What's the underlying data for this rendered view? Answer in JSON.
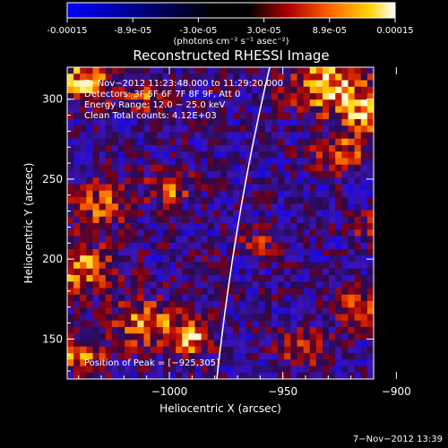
{
  "colors": {
    "background": "#000000",
    "text": "#ffffff",
    "limb": "#ffffff",
    "colorbar_stops": [
      "#0000ff",
      "#000000",
      "#b40000",
      "#ff6400",
      "#ffd200",
      "#ffffff"
    ]
  },
  "colorbar": {
    "ticks": [
      "-0.00015",
      "-8.9e-05",
      "-3.0e-05",
      "3.0e-05",
      "8.9e-05",
      "0.00015"
    ],
    "unit_label": "(photons cm⁻² s⁻¹ asec⁻²)"
  },
  "chart_data": {
    "type": "heatmap",
    "title": "Reconstructed RHESSI Image",
    "xlabel": "Heliocentric X (arcsec)",
    "ylabel": "Heliocentric Y (arcsec)",
    "xlim": [
      -1045,
      -910
    ],
    "ylim": [
      125,
      320
    ],
    "x_ticks": [
      -1000,
      -950,
      -900
    ],
    "y_ticks": [
      150,
      200,
      250,
      300
    ],
    "x_tick_labels": [
      "−1000",
      "−950",
      "−900"
    ],
    "y_tick_labels": [
      "150",
      "200",
      "250",
      "300"
    ],
    "value_range": [
      -0.00015,
      0.00015
    ],
    "grid": false,
    "info": [
      "7−Nov−2012 11:23:48.000 to 11:29:20.000",
      "Detectors: 3F 5F 6F 7F 8F 9F, Att 0",
      "Energy Range: 12.0 − 25.0 keV",
      "Clean      Total counts: 4.12E+03"
    ],
    "peak_text": "Position of Peak = [−925,305]",
    "peak": [
      -925,
      305
    ]
  },
  "timestamp": "7−Nov−2012 13:39"
}
